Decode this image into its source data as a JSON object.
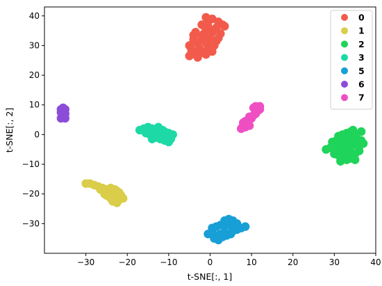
{
  "chart_data": {
    "type": "scatter",
    "title": "",
    "xlabel": "t-SNE[:, 1]",
    "ylabel": "t-SNE[:, 2]",
    "xlim": [
      -40,
      40
    ],
    "ylim": [
      -40,
      43
    ],
    "x_ticks": [
      -30,
      -20,
      -10,
      0,
      10,
      20,
      30,
      40
    ],
    "y_ticks": [
      -30,
      -20,
      -10,
      0,
      10,
      20,
      30,
      40
    ],
    "x_tick_labels": [
      "−30",
      "−20",
      "−10",
      "0",
      "10",
      "20",
      "30",
      "40"
    ],
    "y_tick_labels": [
      "−30",
      "−20",
      "−10",
      "0",
      "10",
      "20",
      "30",
      "40"
    ],
    "grid": false,
    "legend_position": "top-right",
    "series": [
      {
        "name": "0",
        "color": "#f25b4b",
        "x": [
          -1.0,
          0.5,
          2.0,
          -2.0,
          -0.5,
          1.5,
          3.0,
          -3.5,
          -1.5,
          0.5,
          2.5,
          -4.0,
          -2.0,
          0.0,
          1.5,
          -5.0,
          -3.0,
          -1.0,
          1.0,
          -4.5,
          -2.5,
          -0.5,
          -3.5,
          -1.5,
          0.5,
          -5.0,
          -3.0,
          -1.0,
          -2.0,
          2.0,
          3.5,
          -1.0,
          -0.5,
          -4.0,
          -0.5
        ],
        "y": [
          39.5,
          39.0,
          38.0,
          37.0,
          36.5,
          36.0,
          37.0,
          34.5,
          34.0,
          34.5,
          34.0,
          32.0,
          32.5,
          32.5,
          31.5,
          30.0,
          30.5,
          31.0,
          30.0,
          28.5,
          29.0,
          28.5,
          27.0,
          27.5,
          28.0,
          26.5,
          26.0,
          27.0,
          33.0,
          32.5,
          36.5,
          35.5,
          30.0,
          33.5,
          38.0
        ]
      },
      {
        "name": "1",
        "color": "#d9cd4a",
        "x": [
          -30.0,
          -29.0,
          -28.0,
          -27.0,
          -26.0,
          -25.0,
          -24.0,
          -23.0,
          -25.5,
          -24.5,
          -23.5,
          -22.5,
          -21.5,
          -24.0,
          -23.0,
          -22.0,
          -21.5,
          -22.5,
          -23.5,
          -26.5,
          -22.0,
          -21.0,
          -25.0
        ],
        "y": [
          -16.5,
          -16.5,
          -17.0,
          -17.5,
          -18.0,
          -18.5,
          -18.0,
          -18.5,
          -20.0,
          -19.5,
          -20.0,
          -19.0,
          -20.5,
          -21.5,
          -21.0,
          -22.0,
          -21.5,
          -23.0,
          -22.5,
          -18.5,
          -19.5,
          -21.5,
          -20.5
        ]
      },
      {
        "name": "2",
        "color": "#1fd45a",
        "x": [
          28.0,
          29.0,
          30.0,
          31.0,
          32.0,
          33.0,
          34.0,
          35.0,
          36.0,
          37.0,
          29.5,
          30.5,
          31.5,
          32.5,
          33.5,
          34.5,
          35.5,
          36.5,
          30.0,
          31.0,
          32.0,
          33.0,
          34.0,
          35.0,
          36.0,
          31.0,
          32.0,
          33.0,
          34.0,
          35.0,
          33.0,
          34.0,
          35.0,
          32.0,
          33.0,
          31.5,
          34.5,
          36.5
        ],
        "y": [
          -5.0,
          -4.5,
          -5.5,
          -4.0,
          -5.0,
          -4.5,
          -4.0,
          -3.5,
          -4.0,
          -3.0,
          -2.5,
          -2.0,
          -1.5,
          -2.0,
          -1.5,
          -1.0,
          -1.5,
          -2.0,
          -6.5,
          -7.0,
          -7.5,
          -7.0,
          -6.0,
          -6.5,
          -5.5,
          -0.5,
          0.0,
          0.5,
          1.0,
          0.0,
          -8.5,
          -8.0,
          -8.5,
          -3.0,
          -3.5,
          -9.0,
          1.5,
          1.0
        ]
      },
      {
        "name": "3",
        "color": "#1dd9a6",
        "x": [
          -17.0,
          -16.0,
          -15.0,
          -14.0,
          -13.0,
          -12.0,
          -11.0,
          -10.0,
          -9.0,
          -15.5,
          -14.5,
          -13.5,
          -12.5,
          -11.5,
          -10.5,
          -9.5,
          -14.0,
          -13.0,
          -12.0,
          -11.0,
          -10.0,
          -12.5,
          -11.5,
          -10.5,
          -15.0
        ],
        "y": [
          1.5,
          2.0,
          2.5,
          2.0,
          1.5,
          1.0,
          1.0,
          0.5,
          0.0,
          0.5,
          0.0,
          0.5,
          0.0,
          -0.5,
          -0.5,
          -1.5,
          -1.5,
          -1.0,
          -1.5,
          -2.0,
          -2.5,
          2.5,
          1.5,
          -1.0,
          2.0
        ]
      },
      {
        "name": "5",
        "color": "#179fd6",
        "x": [
          -0.5,
          0.5,
          1.5,
          2.5,
          3.5,
          4.5,
          5.5,
          6.5,
          7.5,
          8.5,
          0.5,
          1.5,
          2.5,
          3.5,
          4.5,
          5.5,
          6.5,
          1.0,
          2.0,
          3.0,
          4.0,
          5.0,
          3.5,
          4.5,
          5.5,
          6.5
        ],
        "y": [
          -33.5,
          -33.0,
          -34.0,
          -33.5,
          -33.0,
          -33.5,
          -32.5,
          -32.0,
          -31.5,
          -31.0,
          -31.5,
          -31.0,
          -30.5,
          -31.0,
          -30.5,
          -30.0,
          -30.0,
          -35.0,
          -35.5,
          -34.5,
          -34.0,
          -33.5,
          -29.0,
          -28.5,
          -29.0,
          -30.5
        ]
      },
      {
        "name": "6",
        "color": "#8b4dd8",
        "x": [
          -36.0,
          -35.0,
          -35.5,
          -36.0,
          -35.0,
          -35.5,
          -36.0,
          -35.0,
          -35.5
        ],
        "y": [
          8.5,
          8.5,
          8.0,
          7.5,
          7.0,
          6.5,
          5.5,
          5.5,
          9.0
        ]
      },
      {
        "name": "7",
        "color": "#ef4fc3",
        "x": [
          7.5,
          8.0,
          8.5,
          9.0,
          9.5,
          8.0,
          8.5,
          9.5,
          10.0,
          10.5,
          11.0,
          11.5,
          12.0,
          10.5,
          11.0,
          12.0,
          9.5
        ],
        "y": [
          2.0,
          3.0,
          2.5,
          3.5,
          3.0,
          4.0,
          4.5,
          5.0,
          5.5,
          6.5,
          7.0,
          8.0,
          8.5,
          9.0,
          9.5,
          9.5,
          6.0
        ]
      }
    ]
  }
}
